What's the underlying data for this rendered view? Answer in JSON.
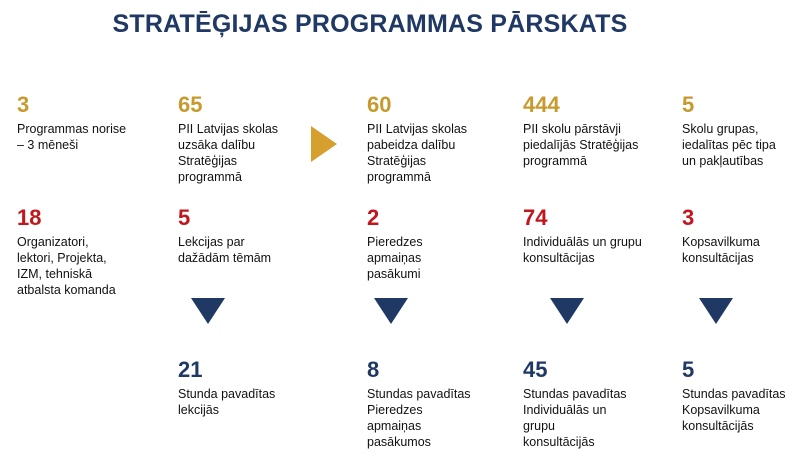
{
  "title": "STRATĒĢIJAS PROGRAMMAS PĀRSKATS",
  "colors": {
    "gold": "#c79a2e",
    "red": "#c0161c",
    "navy": "#1f3864"
  },
  "row1": [
    {
      "value": "3",
      "line1": "Programmas norise",
      "line2": "– 3 mēneši",
      "line3": "",
      "line4": ""
    },
    {
      "value": "65",
      "line1": "PII Latvijas skolas",
      "line2": "uzsāka dalību",
      "line3": "Stratēģijas",
      "line4": "programmā"
    },
    {
      "value": "60",
      "line1": "PII Latvijas skolas",
      "line2": "pabeidza dalību",
      "line3": "Stratēģijas",
      "line4": "programmā"
    },
    {
      "value": "444",
      "line1": "PII skolu pārstāvji",
      "line2": "piedalījās Stratēģijas",
      "line3": "programmā",
      "line4": ""
    },
    {
      "value": "5",
      "line1": "Skolu grupas,",
      "line2": "iedalītas pēc tipa",
      "line3": "un pakļautības",
      "line4": ""
    }
  ],
  "row2": [
    {
      "value": "18",
      "line1": "Organizatori,",
      "line2": "lektori, Projekta,",
      "line3": "IZM, tehniskā",
      "line4": "atbalsta komanda"
    },
    {
      "value": "5",
      "line1": "Lekcijas par",
      "line2": "dažādām tēmām",
      "line3": "",
      "line4": ""
    },
    {
      "value": "2",
      "line1": "Pieredzes",
      "line2": "apmaiņas",
      "line3": "pasākumi",
      "line4": ""
    },
    {
      "value": "74",
      "line1": "Individuālās un grupu",
      "line2": "konsultācijas",
      "line3": "",
      "line4": ""
    },
    {
      "value": "3",
      "line1": "Kopsavilkuma",
      "line2": "konsultācijas",
      "line3": "",
      "line4": ""
    }
  ],
  "row3": [
    {
      "value": "21",
      "line1": "Stunda pavadītas",
      "line2": "lekcijās",
      "line3": "",
      "line4": ""
    },
    {
      "value": "8",
      "line1": "Stundas pavadītas",
      "line2": "Pieredzes",
      "line3": "apmaiņas",
      "line4": "pasākumos"
    },
    {
      "value": "45",
      "line1": "Stundas pavadītas",
      "line2": "Individuālās un",
      "line3": "grupu",
      "line4": "konsultācijās"
    },
    {
      "value": "5",
      "line1": "Stundas pavadītas",
      "line2": "Kopsavilkuma",
      "line3": "konsultācijās",
      "line4": ""
    }
  ]
}
